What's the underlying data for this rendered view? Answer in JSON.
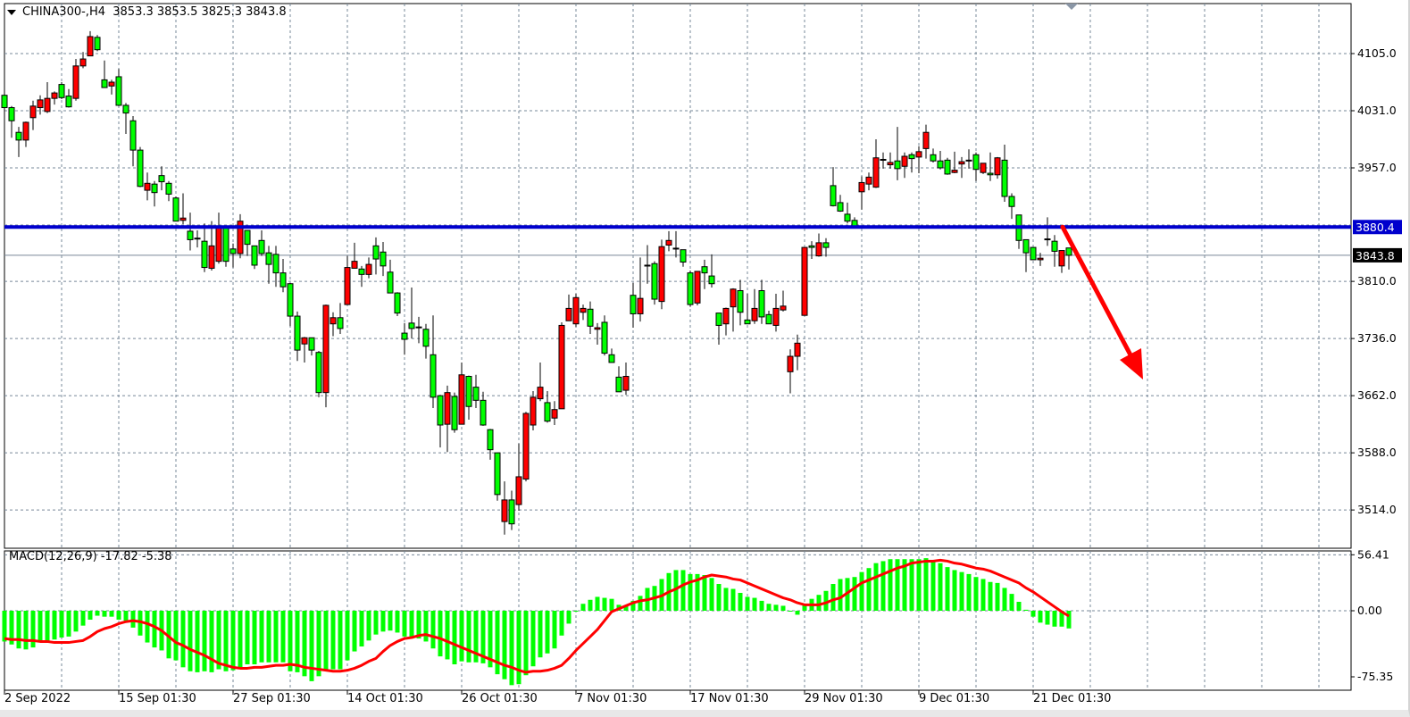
{
  "header": {
    "symbol_timeframe": "CHINA300-,H4",
    "ohlc_text": "3853.3 3853.5 3825.3 3843.8"
  },
  "macd_header": "MACD(12,26,9) -17.82 -5.38",
  "colors": {
    "bull_candle": "#ff0000",
    "bear_candle": "#00ff00",
    "horizontal_level": "#0000cd",
    "macd_histogram": "#00ff00",
    "signal_line": "#ff0000",
    "arrow": "#ff0000",
    "grid": "#778899"
  },
  "chart_data": [
    {
      "type": "candlestick",
      "symbol": "CHINA300-",
      "timeframe": "H4",
      "grid": true,
      "y_ticks": [
        "4105.0",
        "4031.0",
        "3957.0",
        "3810.0",
        "3736.0",
        "3662.0",
        "3588.0",
        "3514.0"
      ],
      "x_tick_labels": [
        "2 Sep 2022",
        "15 Sep 01:30",
        "27 Sep 01:30",
        "14 Oct 01:30",
        "26 Oct 01:30",
        "7 Nov 01:30",
        "17 Nov 01:30",
        "29 Nov 01:30",
        "9 Dec 01:30",
        "21 Dec 01:30"
      ],
      "horizontal_line": {
        "value": 3880.4,
        "label": "3880.4"
      },
      "current_price": {
        "value": 3843.8,
        "label": "3843.8"
      },
      "annotation": {
        "type": "arrow",
        "direction": "down",
        "from_price": 3880.4,
        "to_price": 3735
      },
      "ohlc_format": [
        "open",
        "high",
        "low",
        "close"
      ],
      "candles": [
        [
          4051,
          4055,
          4017,
          4035
        ],
        [
          4035,
          4037,
          3996,
          4018
        ],
        [
          4003,
          4010,
          3971,
          3993
        ],
        [
          3993,
          4017,
          3984,
          4016
        ],
        [
          4022,
          4044,
          4006,
          4037
        ],
        [
          4035,
          4051,
          4026,
          4045
        ],
        [
          4030,
          4068,
          4028,
          4047
        ],
        [
          4047,
          4056,
          4039,
          4054
        ],
        [
          4065,
          4068,
          4046,
          4048
        ],
        [
          4050,
          4059,
          4035,
          4036
        ],
        [
          4047,
          4098,
          4044,
          4089
        ],
        [
          4089,
          4107,
          4086,
          4098
        ],
        [
          4102,
          4134,
          4102,
          4127
        ],
        [
          4126,
          4129,
          4108,
          4110
        ],
        [
          4071,
          4096,
          4061,
          4061
        ],
        [
          4063,
          4071,
          4052,
          4068
        ],
        [
          4075,
          4085,
          4037,
          4038
        ],
        [
          4038,
          4041,
          4001,
          4028
        ],
        [
          4018,
          4024,
          3959,
          3980
        ],
        [
          3980,
          3984,
          3932,
          3933
        ],
        [
          3928,
          3951,
          3915,
          3937
        ],
        [
          3936,
          3940,
          3907,
          3925
        ],
        [
          3947,
          3959,
          3928,
          3939
        ],
        [
          3937,
          3940,
          3914,
          3923
        ],
        [
          3918,
          3920,
          3888,
          3888
        ],
        [
          3889,
          3924,
          3884,
          3892
        ],
        [
          3875,
          3899,
          3850,
          3864
        ],
        [
          3866,
          3876,
          3854,
          3865
        ],
        [
          3862,
          3885,
          3822,
          3828
        ],
        [
          3827,
          3888,
          3824,
          3856
        ],
        [
          3836,
          3899,
          3833,
          3881
        ],
        [
          3881,
          3881,
          3829,
          3836
        ],
        [
          3852,
          3859,
          3828,
          3846
        ],
        [
          3846,
          3897,
          3840,
          3888
        ],
        [
          3876,
          3876,
          3843,
          3858
        ],
        [
          3856,
          3856,
          3826,
          3831
        ],
        [
          3863,
          3876,
          3843,
          3846
        ],
        [
          3847,
          3856,
          3807,
          3832
        ],
        [
          3845,
          3856,
          3803,
          3821
        ],
        [
          3821,
          3839,
          3796,
          3803
        ],
        [
          3807,
          3808,
          3752,
          3765
        ],
        [
          3765,
          3771,
          3707,
          3721
        ],
        [
          3729,
          3738,
          3705,
          3737
        ],
        [
          3737,
          3737,
          3714,
          3721
        ],
        [
          3718,
          3720,
          3660,
          3666
        ],
        [
          3666,
          3780,
          3647,
          3779
        ],
        [
          3755,
          3770,
          3739,
          3763
        ],
        [
          3763,
          3782,
          3742,
          3749
        ],
        [
          3780,
          3843,
          3780,
          3828
        ],
        [
          3827,
          3860,
          3827,
          3836
        ],
        [
          3826,
          3830,
          3803,
          3819
        ],
        [
          3819,
          3841,
          3814,
          3832
        ],
        [
          3856,
          3867,
          3819,
          3839
        ],
        [
          3848,
          3861,
          3817,
          3830
        ],
        [
          3822,
          3838,
          3795,
          3795
        ],
        [
          3795,
          3796,
          3765,
          3769
        ],
        [
          3743,
          3756,
          3715,
          3735
        ],
        [
          3756,
          3802,
          3736,
          3749
        ],
        [
          3751,
          3764,
          3730,
          3750
        ],
        [
          3748,
          3755,
          3710,
          3726
        ],
        [
          3715,
          3766,
          3646,
          3660
        ],
        [
          3662,
          3663,
          3595,
          3624
        ],
        [
          3625,
          3675,
          3589,
          3666
        ],
        [
          3661,
          3666,
          3614,
          3618
        ],
        [
          3625,
          3705,
          3625,
          3689
        ],
        [
          3687,
          3688,
          3631,
          3648
        ],
        [
          3673,
          3689,
          3646,
          3656
        ],
        [
          3656,
          3667,
          3623,
          3624
        ],
        [
          3618,
          3619,
          3579,
          3592
        ],
        [
          3588,
          3588,
          3526,
          3534
        ],
        [
          3499,
          3551,
          3482,
          3527
        ],
        [
          3527,
          3539,
          3488,
          3496
        ],
        [
          3521,
          3600,
          3513,
          3557
        ],
        [
          3554,
          3641,
          3551,
          3639
        ],
        [
          3624,
          3668,
          3617,
          3660
        ],
        [
          3658,
          3705,
          3655,
          3673
        ],
        [
          3653,
          3668,
          3627,
          3629
        ],
        [
          3633,
          3655,
          3624,
          3644
        ],
        [
          3645,
          3757,
          3645,
          3753
        ],
        [
          3759,
          3793,
          3759,
          3775
        ],
        [
          3755,
          3794,
          3751,
          3789
        ],
        [
          3770,
          3780,
          3760,
          3775
        ],
        [
          3774,
          3784,
          3742,
          3752
        ],
        [
          3748,
          3756,
          3728,
          3750
        ],
        [
          3757,
          3766,
          3714,
          3717
        ],
        [
          3715,
          3723,
          3705,
          3705
        ],
        [
          3686,
          3700,
          3667,
          3667
        ],
        [
          3669,
          3705,
          3663,
          3687
        ],
        [
          3792,
          3808,
          3750,
          3768
        ],
        [
          3768,
          3841,
          3758,
          3788
        ],
        [
          3831,
          3857,
          3807,
          3830
        ],
        [
          3833,
          3836,
          3780,
          3787
        ],
        [
          3784,
          3864,
          3774,
          3855
        ],
        [
          3857,
          3875,
          3849,
          3863
        ],
        [
          3853,
          3875,
          3841,
          3853
        ],
        [
          3851,
          3851,
          3829,
          3835
        ],
        [
          3821,
          3824,
          3777,
          3780
        ],
        [
          3782,
          3823,
          3779,
          3823
        ],
        [
          3829,
          3838,
          3800,
          3821
        ],
        [
          3817,
          3845,
          3802,
          3807
        ],
        [
          3769,
          3769,
          3728,
          3753
        ],
        [
          3755,
          3776,
          3740,
          3775
        ],
        [
          3777,
          3801,
          3745,
          3800
        ],
        [
          3798,
          3812,
          3753,
          3770
        ],
        [
          3760,
          3794,
          3755,
          3755
        ],
        [
          3759,
          3800,
          3755,
          3775
        ],
        [
          3798,
          3812,
          3755,
          3764
        ],
        [
          3767,
          3772,
          3755,
          3755
        ],
        [
          3753,
          3794,
          3745,
          3775
        ],
        [
          3773,
          3798,
          3771,
          3778
        ],
        [
          3693,
          3722,
          3665,
          3713
        ],
        [
          3713,
          3741,
          3695,
          3730
        ],
        [
          3766,
          3854,
          3766,
          3854
        ],
        [
          3856,
          3862,
          3839,
          3854
        ],
        [
          3843,
          3872,
          3842,
          3860
        ],
        [
          3860,
          3866,
          3842,
          3854
        ],
        [
          3934,
          3958,
          3907,
          3908
        ],
        [
          3912,
          3922,
          3900,
          3901
        ],
        [
          3897,
          3912,
          3885,
          3888
        ],
        [
          3889,
          3893,
          3880,
          3880
        ],
        [
          3926,
          3946,
          3903,
          3938
        ],
        [
          3936,
          3951,
          3928,
          3945
        ],
        [
          3932,
          3994,
          3931,
          3970
        ],
        [
          3968,
          3977,
          3956,
          3967
        ],
        [
          3961,
          3977,
          3956,
          3964
        ],
        [
          3966,
          4010,
          3941,
          3956
        ],
        [
          3959,
          3977,
          3944,
          3972
        ],
        [
          3974,
          3977,
          3951,
          3969
        ],
        [
          3971,
          3985,
          3950,
          3978
        ],
        [
          3982,
          4013,
          3969,
          4003
        ],
        [
          3974,
          3982,
          3964,
          3966
        ],
        [
          3966,
          3979,
          3955,
          3957
        ],
        [
          3967,
          3970,
          3948,
          3949
        ],
        [
          3951,
          3978,
          3950,
          3954
        ],
        [
          3962,
          3971,
          3944,
          3965
        ],
        [
          3967,
          3981,
          3956,
          3966
        ],
        [
          3974,
          3977,
          3940,
          3955
        ],
        [
          3951,
          3963,
          3949,
          3963
        ],
        [
          3950,
          3977,
          3940,
          3948
        ],
        [
          3948,
          3971,
          3943,
          3970
        ],
        [
          3967,
          3987,
          3913,
          3920
        ],
        [
          3920,
          3924,
          3891,
          3907
        ],
        [
          3896,
          3896,
          3852,
          3863
        ],
        [
          3864,
          3864,
          3822,
          3847
        ],
        [
          3854,
          3854,
          3838,
          3838
        ],
        [
          3838,
          3847,
          3830,
          3840
        ],
        [
          3865,
          3893,
          3856,
          3864
        ],
        [
          3862,
          3870,
          3829,
          3849
        ],
        [
          3830,
          3850,
          3821,
          3850
        ],
        [
          3853.3,
          3853.5,
          3825.3,
          3843.8
        ]
      ]
    },
    {
      "type": "bar+line",
      "indicator": "MACD(12,26,9)",
      "y_ticks": [
        "56.41",
        "0.00",
        "-75.35"
      ],
      "ylim": [
        -75.35,
        56.41
      ],
      "macd_histogram": [
        -31,
        -34,
        -38,
        -39,
        -37,
        -32,
        -32,
        -29,
        -27,
        -26,
        -21,
        -15,
        -9,
        -5,
        -6,
        -6,
        -9,
        -10,
        -17,
        -25,
        -32,
        -37,
        -40,
        -48,
        -50,
        -57,
        -61,
        -62,
        -61,
        -62,
        -59,
        -61,
        -60,
        -57,
        -54,
        -54,
        -52,
        -52,
        -52,
        -52,
        -61,
        -62,
        -66,
        -71,
        -66,
        -59,
        -59,
        -59,
        -50,
        -41,
        -36,
        -30,
        -24,
        -21,
        -20,
        -22,
        -26,
        -28,
        -28,
        -31,
        -38,
        -46,
        -49,
        -54,
        -51,
        -52,
        -52,
        -53,
        -57,
        -64,
        -69,
        -75,
        -74,
        -65,
        -56,
        -47,
        -43,
        -38,
        -25,
        -13,
        0,
        7,
        11,
        14,
        13,
        12,
        6,
        5,
        10,
        15,
        23,
        25,
        32,
        38,
        41,
        41,
        37,
        37,
        36,
        33,
        27,
        23,
        22,
        18,
        14,
        13,
        10,
        7,
        6,
        5,
        0,
        -4,
        6,
        12,
        16,
        20,
        27,
        32,
        33,
        34,
        39,
        43,
        48,
        50,
        52,
        52,
        52,
        52,
        52,
        53,
        50,
        48,
        44,
        41,
        39,
        37,
        34,
        32,
        29,
        28,
        23,
        17,
        9,
        1,
        -6,
        -12,
        -14,
        -16,
        -16,
        -17.82
      ],
      "signal": [
        -28,
        -29,
        -29,
        -30,
        -30,
        -31,
        -31,
        -32,
        -32,
        -32,
        -31,
        -30,
        -26,
        -21,
        -18,
        -16,
        -13,
        -11,
        -10,
        -11,
        -13,
        -16,
        -20,
        -26,
        -32,
        -35,
        -39,
        -42,
        -45,
        -49,
        -53,
        -55,
        -57,
        -58,
        -58,
        -57,
        -57,
        -56,
        -55,
        -55,
        -54,
        -55,
        -57,
        -58,
        -59,
        -60,
        -61,
        -61,
        -60,
        -58,
        -55,
        -51,
        -48,
        -41,
        -35,
        -31,
        -28,
        -27,
        -25,
        -24,
        -26,
        -28,
        -31,
        -34,
        -37,
        -40,
        -43,
        -46,
        -49,
        -52,
        -55,
        -57,
        -60,
        -62,
        -61,
        -61,
        -60,
        -58,
        -55,
        -48,
        -40,
        -33,
        -26,
        -19,
        -10,
        -1,
        2,
        5,
        8,
        10,
        11,
        13,
        15,
        19,
        22,
        26,
        29,
        31,
        34,
        36,
        35,
        34,
        32,
        31,
        28,
        25,
        22,
        19,
        16,
        13,
        11,
        8,
        6,
        6,
        6,
        8,
        11,
        13,
        18,
        23,
        28,
        31,
        34,
        37,
        40,
        43,
        45,
        48,
        49,
        50,
        50,
        51,
        50,
        48,
        47,
        45,
        43,
        42,
        40,
        37,
        34,
        31,
        28,
        23,
        19,
        14,
        9,
        4,
        -1,
        -5.38
      ]
    }
  ]
}
